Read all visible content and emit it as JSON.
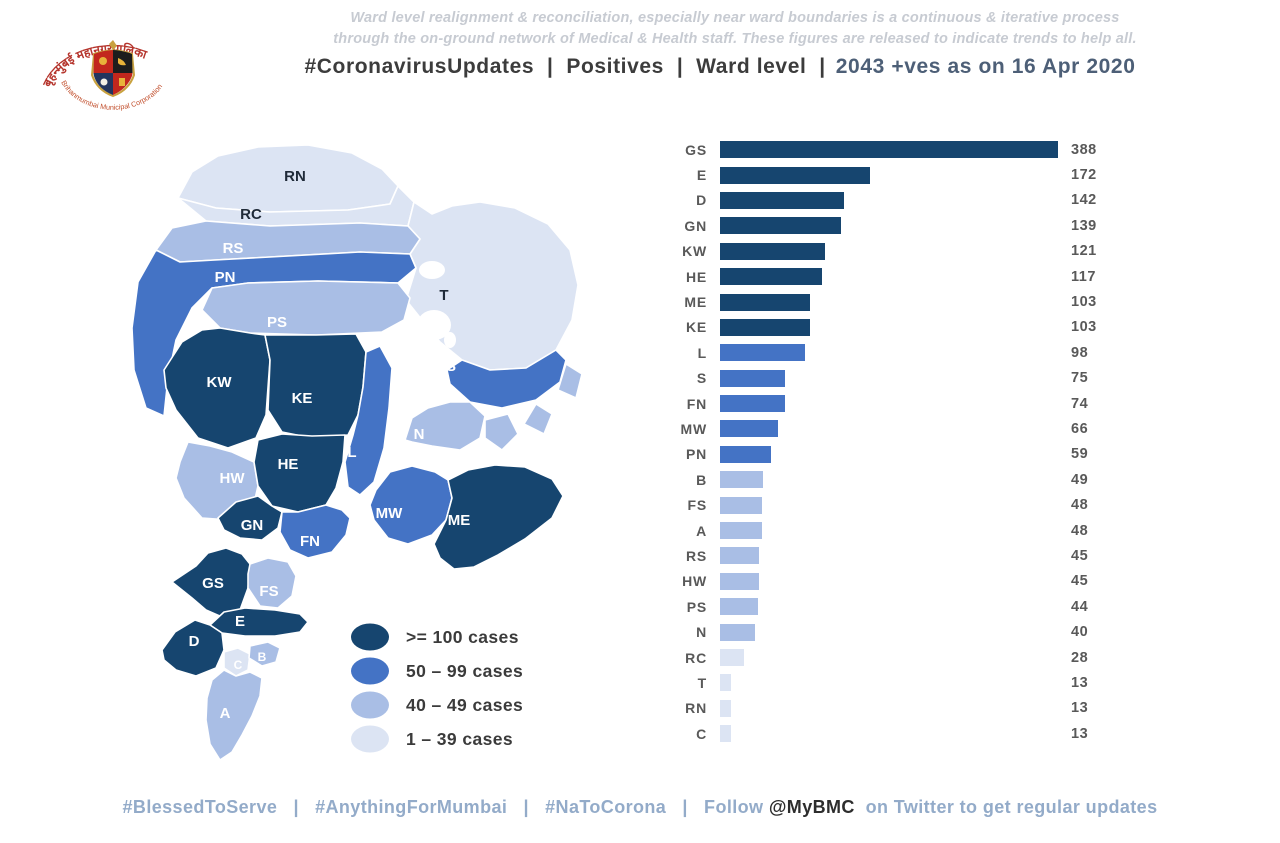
{
  "logo": {
    "devanagari": "बृहन्मुंबई महानगरपालिका",
    "english": "Brihanmumbai Municipal Corporation"
  },
  "disclaimer": {
    "line1": "Ward level realignment & reconciliation, especially near ward boundaries is a continuous & iterative process",
    "line2": "through the on-ground network of Medical & Health staff. These figures are released to indicate trends to help all."
  },
  "title": {
    "main": "#CoronavirusUpdates  |  Positives  |  Ward level  |",
    "highlight": "2043 +ves as on 16 Apr 2020"
  },
  "chart_data": {
    "type": "bar",
    "orientation": "horizontal",
    "title": "Positives by ward",
    "categories": [
      "GS",
      "E",
      "D",
      "GN",
      "KW",
      "HE",
      "ME",
      "KE",
      "L",
      "S",
      "FN",
      "MW",
      "PN",
      "B",
      "FS",
      "A",
      "RS",
      "HW",
      "PS",
      "N",
      "RC",
      "T",
      "RN",
      "C"
    ],
    "values": [
      388,
      172,
      142,
      139,
      121,
      117,
      103,
      103,
      98,
      75,
      74,
      66,
      59,
      49,
      48,
      48,
      45,
      45,
      44,
      40,
      28,
      13,
      13,
      13
    ],
    "total": 2043,
    "xlim": [
      0,
      388
    ],
    "grid": false,
    "value_labels": true,
    "color_scale": [
      {
        "min": 100,
        "color": "#16456F",
        "label": ">= 100 cases"
      },
      {
        "min": 50,
        "color": "#4473C5",
        "label": "50 – 99 cases"
      },
      {
        "min": 40,
        "color": "#A9BEE5",
        "label": "40 – 49 cases"
      },
      {
        "min": 1,
        "color": "#DCE4F3",
        "label": "1 – 39 cases"
      }
    ]
  },
  "legend": {
    "items": [
      {
        "label": ">= 100 cases",
        "color": "#16456F"
      },
      {
        "label": "50 – 99 cases",
        "color": "#4473C5"
      },
      {
        "label": "40 – 49 cases",
        "color": "#A9BEE5"
      },
      {
        "label": "1 – 39 cases",
        "color": "#DCE4F3"
      }
    ]
  },
  "map": {
    "stroke": "#ffffff",
    "water_color": "#ffffff",
    "fragments_color": "#A9BEE5",
    "label_dark_color": "#1f2a38",
    "label_light_color": "#ffffff",
    "wards": [
      {
        "code": "RN",
        "cases": 13,
        "label": "dark"
      },
      {
        "code": "RC",
        "cases": 28,
        "label": "dark"
      },
      {
        "code": "RS",
        "cases": 45,
        "label": "light"
      },
      {
        "code": "PN",
        "cases": 59,
        "label": "light"
      },
      {
        "code": "PS",
        "cases": 44,
        "label": "light"
      },
      {
        "code": "T",
        "cases": 13,
        "label": "dark"
      },
      {
        "code": "S",
        "cases": 75,
        "label": "light"
      },
      {
        "code": "N",
        "cases": 40,
        "label": "light"
      },
      {
        "code": "KW",
        "cases": 121,
        "label": "light"
      },
      {
        "code": "KE",
        "cases": 103,
        "label": "light"
      },
      {
        "code": "L",
        "cases": 98,
        "label": "light"
      },
      {
        "code": "HW",
        "cases": 45,
        "label": "light"
      },
      {
        "code": "HE",
        "cases": 117,
        "label": "light"
      },
      {
        "code": "MW",
        "cases": 66,
        "label": "light"
      },
      {
        "code": "ME",
        "cases": 103,
        "label": "light"
      },
      {
        "code": "GN",
        "cases": 139,
        "label": "light"
      },
      {
        "code": "FN",
        "cases": 74,
        "label": "light"
      },
      {
        "code": "GS",
        "cases": 388,
        "label": "light"
      },
      {
        "code": "FS",
        "cases": 48,
        "label": "light"
      },
      {
        "code": "E",
        "cases": 172,
        "label": "light"
      },
      {
        "code": "D",
        "cases": 142,
        "label": "light"
      },
      {
        "code": "C",
        "cases": 13,
        "label": "light"
      },
      {
        "code": "B",
        "cases": 49,
        "label": "light"
      },
      {
        "code": "A",
        "cases": 48,
        "label": "light"
      }
    ]
  },
  "footer": {
    "left": "#BlessedToServe   |   #AnythingForMumbai   |   #NaToCorona   |   Follow ",
    "handle": "@MyBMC",
    "right": "  on Twitter to get regular updates"
  }
}
